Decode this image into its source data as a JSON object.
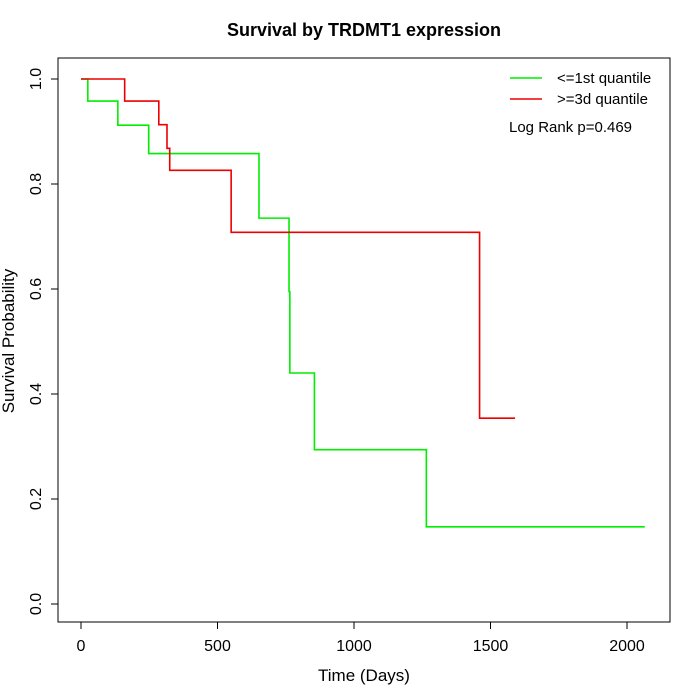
{
  "chart_data": {
    "type": "line",
    "title": "Survival by TRDMT1 expression",
    "xlabel": "Time (Days)",
    "ylabel": "Survival Probability",
    "xlim": [
      0,
      2070
    ],
    "ylim": [
      0,
      1
    ],
    "xticks": [
      0,
      500,
      1000,
      1500,
      2000
    ],
    "yticks": [
      0.0,
      0.2,
      0.4,
      0.6,
      0.8,
      1.0
    ],
    "xtick_labels": [
      "0",
      "500",
      "1000",
      "1500",
      "2000"
    ],
    "ytick_labels": [
      "0.0",
      "0.2",
      "0.4",
      "0.6",
      "0.8",
      "1.0"
    ],
    "grid": false,
    "legend_position": "top-right",
    "annotation": "Log Rank p=0.469",
    "series": [
      {
        "name": "<=1st quantile",
        "color": "#00ee00",
        "step": true,
        "x": [
          0,
          25,
          135,
          248,
          652,
          762,
          765,
          855,
          1265,
          2065
        ],
        "y": [
          1.0,
          0.958,
          0.912,
          0.858,
          0.735,
          0.595,
          0.44,
          0.294,
          0.147,
          0.147
        ]
      },
      {
        "name": ">=3d quantile",
        "color": "#ee0000",
        "step": true,
        "x": [
          0,
          160,
          285,
          315,
          325,
          550,
          1460,
          1590
        ],
        "y": [
          1.0,
          0.958,
          0.913,
          0.868,
          0.826,
          0.708,
          0.354,
          0.354
        ]
      }
    ]
  }
}
